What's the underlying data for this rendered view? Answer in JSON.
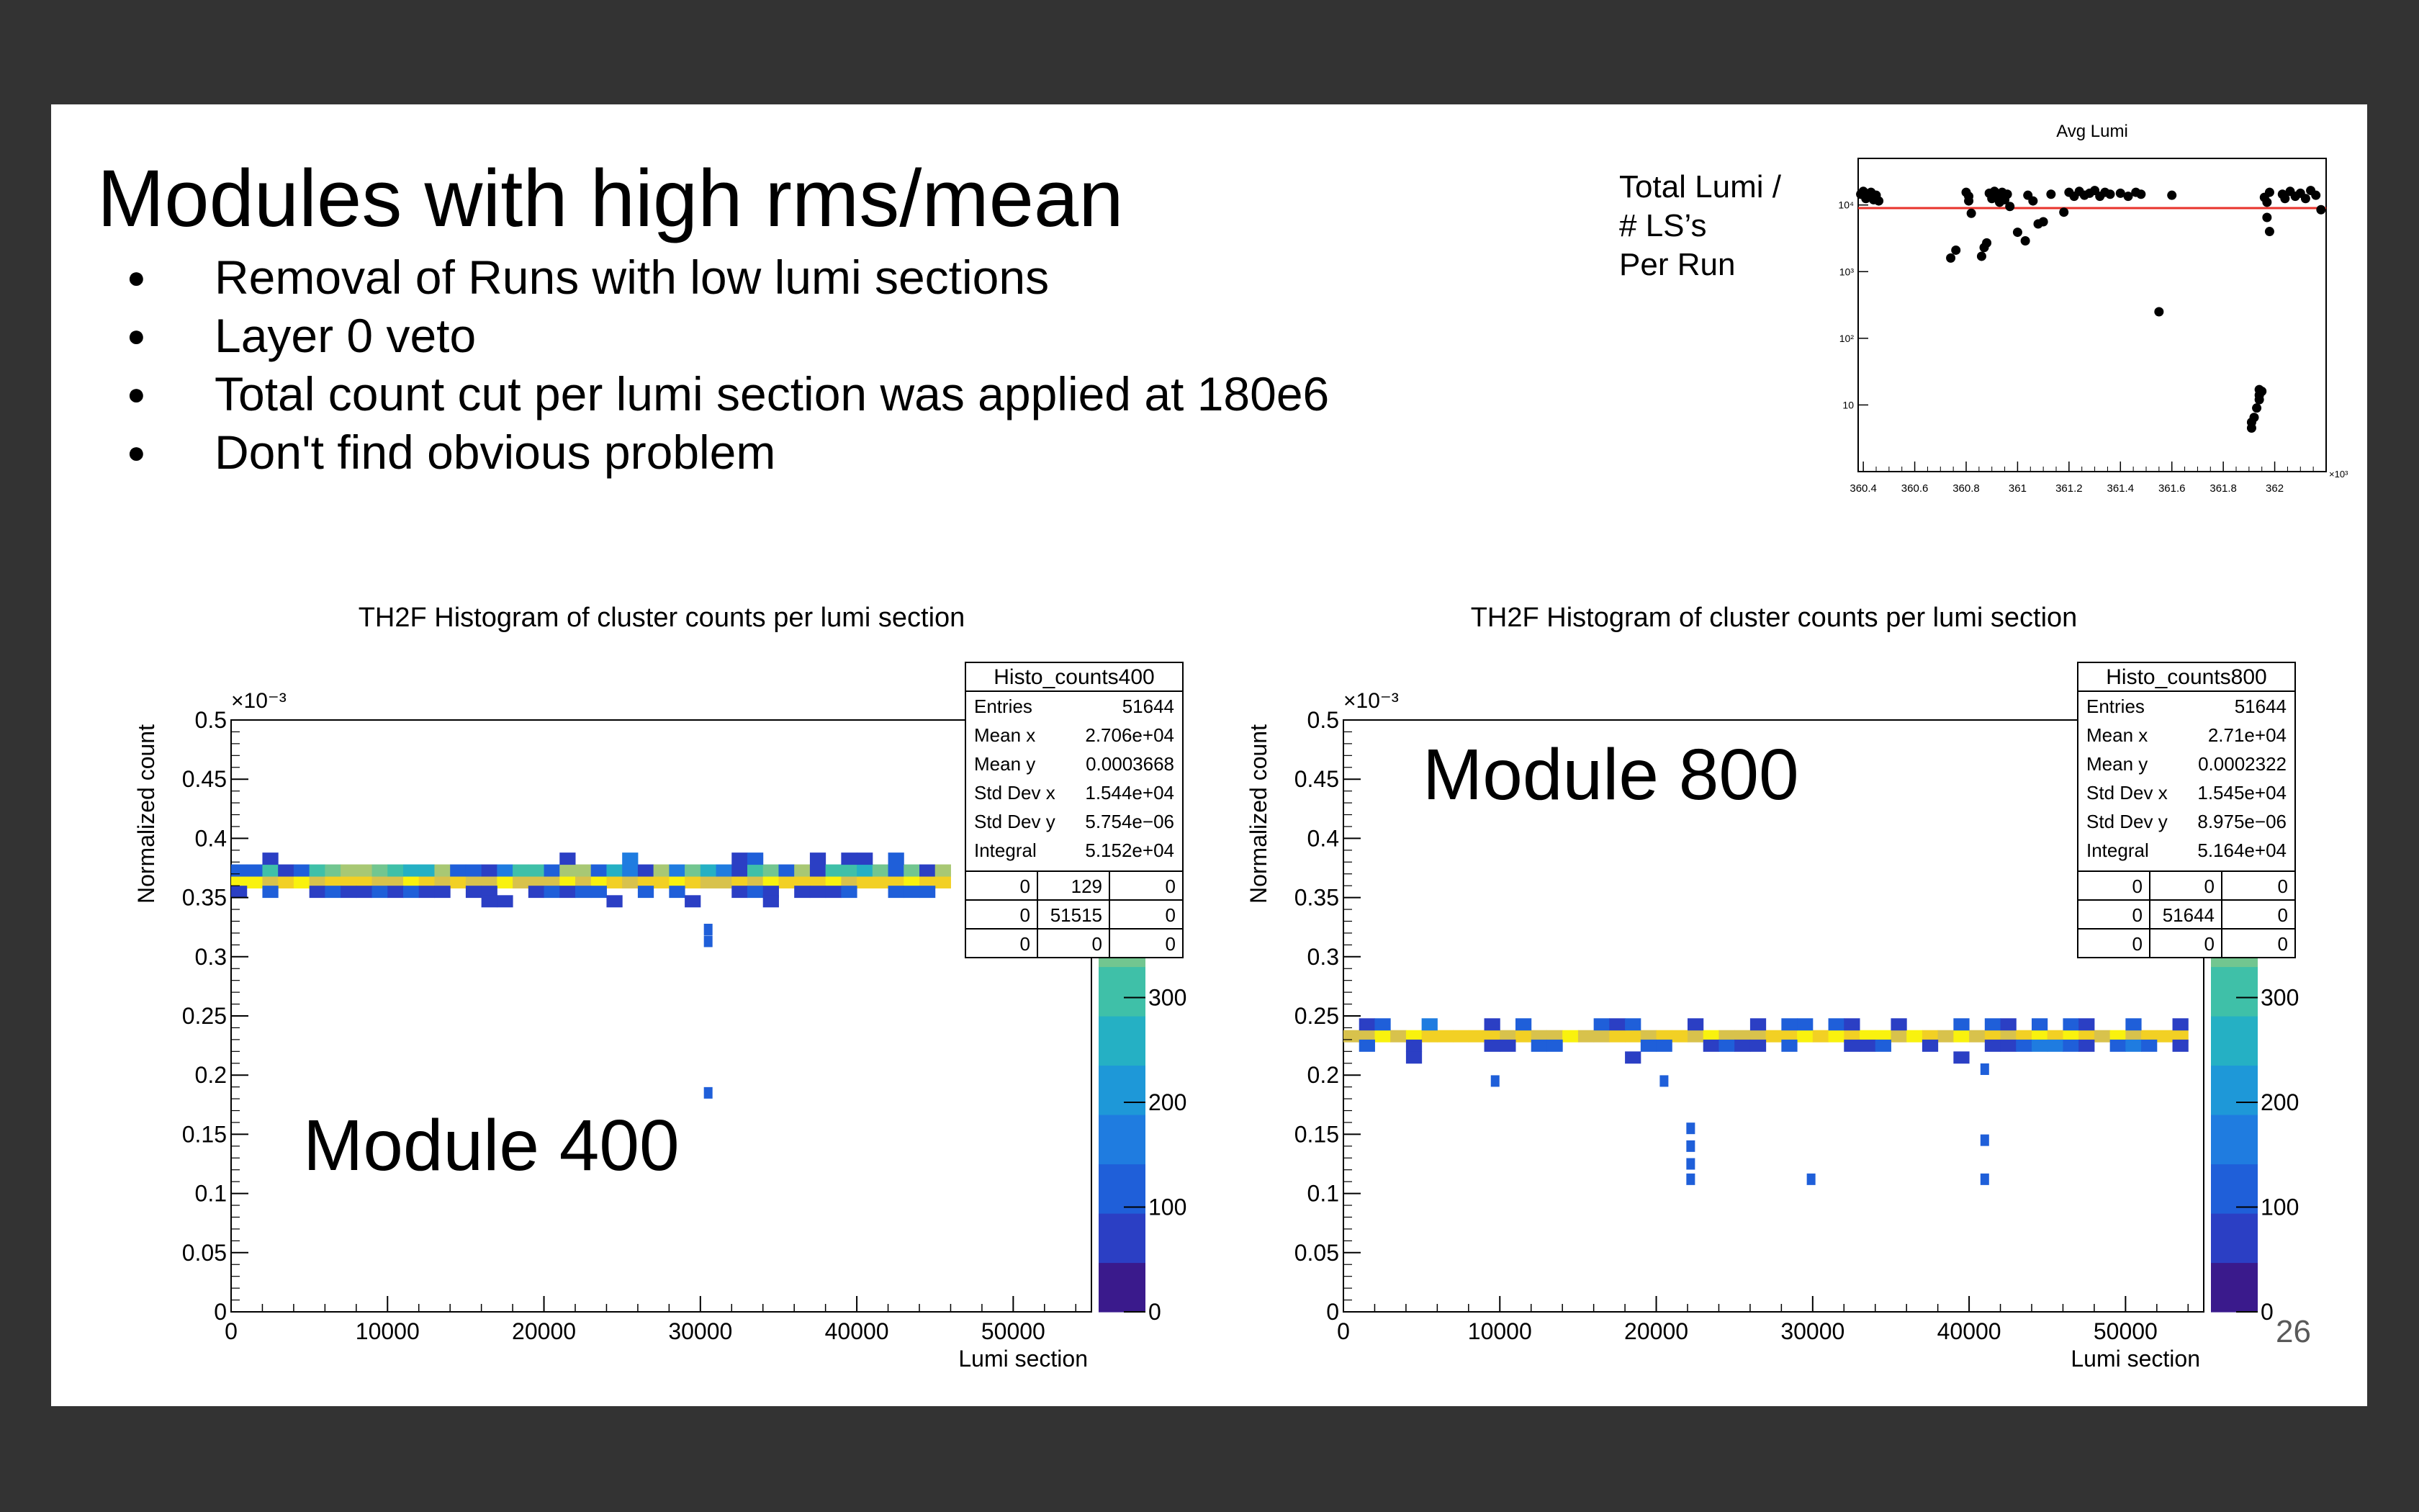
{
  "slide": {
    "title": "Modules with high rms/mean",
    "bullets": [
      "Removal of Runs with low lumi sections",
      "Layer 0 veto",
      "Total count cut per lumi section was applied at 180e6",
      "Don't find obvious problem"
    ],
    "lumi_label_lines": [
      "Total Lumi /",
      "#  LS’s",
      "Per Run"
    ],
    "page_number": "26"
  },
  "colors": {
    "background": "#333333",
    "slide": "#ffffff",
    "fit_line": "#e8332b",
    "palette": [
      "#3a1a8c",
      "#2b3fc4",
      "#1f5fd9",
      "#1f7ce0",
      "#1e98d8",
      "#25b0c4",
      "#3fc0a8",
      "#72c690",
      "#a8c874",
      "#d8c24c",
      "#f2d024",
      "#f9f20e"
    ]
  },
  "chart_data": [
    {
      "type": "scatter",
      "title": "Avg Lumi",
      "xlabel": "",
      "ylabel": "",
      "x_exponent_label": "×10³",
      "xlim": [
        360.38,
        362.2
      ],
      "ylim": [
        1,
        50000
      ],
      "y_scale": "log",
      "x_ticks": [
        360.4,
        360.6,
        360.8,
        361,
        361.2,
        361.4,
        361.6,
        361.8,
        362
      ],
      "x_tick_labels": [
        "360.4",
        "360.6",
        "360.8",
        "361",
        "361.2",
        "361.4",
        "361.6",
        "361.8",
        "362"
      ],
      "y_ticks": [
        10,
        100,
        1000,
        10000
      ],
      "y_tick_labels": [
        "10",
        "10²",
        "10³",
        "10⁴"
      ],
      "reference_line_y": 9000,
      "points": [
        [
          360.39,
          14500
        ],
        [
          360.4,
          16000
        ],
        [
          360.41,
          12500
        ],
        [
          360.42,
          13500
        ],
        [
          360.43,
          15500
        ],
        [
          360.44,
          12000
        ],
        [
          360.45,
          14000
        ],
        [
          360.46,
          11500
        ],
        [
          360.74,
          1600
        ],
        [
          360.76,
          2100
        ],
        [
          360.8,
          15500
        ],
        [
          360.81,
          13500
        ],
        [
          360.82,
          7500
        ],
        [
          360.81,
          11500
        ],
        [
          360.86,
          1700
        ],
        [
          360.87,
          2300
        ],
        [
          360.88,
          2700
        ],
        [
          360.89,
          15000
        ],
        [
          360.9,
          12500
        ],
        [
          360.91,
          16000
        ],
        [
          360.92,
          13500
        ],
        [
          360.93,
          11000
        ],
        [
          360.94,
          15500
        ],
        [
          360.95,
          12000
        ],
        [
          360.96,
          14500
        ],
        [
          360.97,
          9500
        ],
        [
          361.0,
          3900
        ],
        [
          361.03,
          2900
        ],
        [
          361.04,
          14000
        ],
        [
          361.06,
          11500
        ],
        [
          361.08,
          5200
        ],
        [
          361.1,
          5600
        ],
        [
          361.13,
          14500
        ],
        [
          361.18,
          7800
        ],
        [
          361.2,
          15500
        ],
        [
          361.22,
          13500
        ],
        [
          361.24,
          16000
        ],
        [
          361.26,
          14000
        ],
        [
          361.28,
          15000
        ],
        [
          361.3,
          16500
        ],
        [
          361.32,
          13500
        ],
        [
          361.34,
          15500
        ],
        [
          361.36,
          14500
        ],
        [
          361.4,
          15000
        ],
        [
          361.43,
          13500
        ],
        [
          361.46,
          15500
        ],
        [
          361.48,
          14500
        ],
        [
          361.55,
          250
        ],
        [
          361.6,
          14000
        ],
        [
          361.91,
          4.5
        ],
        [
          361.91,
          5.5
        ],
        [
          361.92,
          6.5
        ],
        [
          361.93,
          9
        ],
        [
          361.94,
          12
        ],
        [
          361.94,
          14
        ],
        [
          361.95,
          16
        ],
        [
          361.94,
          17
        ],
        [
          361.96,
          13000
        ],
        [
          361.97,
          11000
        ],
        [
          361.98,
          15500
        ],
        [
          361.97,
          6500
        ],
        [
          361.98,
          4000
        ],
        [
          362.03,
          14500
        ],
        [
          362.04,
          12500
        ],
        [
          362.06,
          16000
        ],
        [
          362.08,
          13500
        ],
        [
          362.1,
          15000
        ],
        [
          362.12,
          12500
        ],
        [
          362.14,
          16500
        ],
        [
          362.16,
          14000
        ],
        [
          362.18,
          8500
        ]
      ]
    },
    {
      "type": "heatmap",
      "title": "TH2F Histogram of cluster counts per lumi section",
      "xlabel": "Lumi section",
      "ylabel": "Normalized count",
      "y_exponent_label": "×10⁻³",
      "xlim": [
        0,
        55000
      ],
      "ylim": [
        0,
        0.5
      ],
      "x_ticks": [
        0,
        10000,
        20000,
        30000,
        40000,
        50000
      ],
      "y_ticks": [
        0,
        0.05,
        0.1,
        0.15,
        0.2,
        0.25,
        0.3,
        0.35,
        0.4,
        0.45,
        0.5
      ],
      "y_tick_labels": [
        "0",
        "0.05",
        "0.1",
        "0.15",
        "0.2",
        "0.25",
        "0.3",
        "0.35",
        "0.4",
        "0.45",
        "0.5"
      ],
      "z_ticks": [
        0,
        100,
        200,
        300
      ],
      "z_tick_labels": [
        "0",
        "100",
        "200",
        "300"
      ],
      "module_label": "Module 400",
      "band_rows": [
        {
          "y": 0.363,
          "kind": "core"
        },
        {
          "y": 0.373,
          "kind": "warm"
        },
        {
          "y": 0.355,
          "kind": "low"
        },
        {
          "y": 0.383,
          "kind": "sparse"
        },
        {
          "y": 0.347,
          "kind": "sparse2"
        }
      ],
      "band_xmax": 46000,
      "outliers": [
        [
          30500,
          0.313
        ],
        [
          30500,
          0.323
        ],
        [
          30500,
          0.185
        ]
      ],
      "stats": {
        "name": "Histo_counts400",
        "rows": [
          [
            "Entries",
            "51644"
          ],
          [
            "Mean x",
            "2.706e+04"
          ],
          [
            "Mean y",
            "0.0003668"
          ],
          [
            "Std Dev x",
            "1.544e+04"
          ],
          [
            "Std Dev y",
            "5.754e−06"
          ],
          [
            "Integral",
            "5.152e+04"
          ]
        ],
        "grid": [
          [
            "0",
            "129",
            "0"
          ],
          [
            "0",
            "51515",
            "0"
          ],
          [
            "0",
            "0",
            "0"
          ]
        ]
      }
    },
    {
      "type": "heatmap",
      "title": "TH2F Histogram of cluster counts per lumi section",
      "xlabel": "Lumi section",
      "ylabel": "Normalized count",
      "y_exponent_label": "×10⁻³",
      "xlim": [
        0,
        55000
      ],
      "ylim": [
        0,
        0.5
      ],
      "x_ticks": [
        0,
        10000,
        20000,
        30000,
        40000,
        50000
      ],
      "y_ticks": [
        0,
        0.05,
        0.1,
        0.15,
        0.2,
        0.25,
        0.3,
        0.35,
        0.4,
        0.45,
        0.5
      ],
      "y_tick_labels": [
        "0",
        "0.05",
        "0.1",
        "0.15",
        "0.2",
        "0.25",
        "0.3",
        "0.35",
        "0.4",
        "0.45",
        "0.5"
      ],
      "z_ticks": [
        0,
        100,
        200,
        300
      ],
      "z_tick_labels": [
        "0",
        "100",
        "200",
        "300"
      ],
      "module_label": "Module 800",
      "band_rows": [
        {
          "y": 0.233,
          "kind": "core"
        },
        {
          "y": 0.225,
          "kind": "low"
        },
        {
          "y": 0.243,
          "kind": "sparse"
        },
        {
          "y": 0.215,
          "kind": "sparse2"
        }
      ],
      "band_xmax": 54000,
      "outliers": [
        [
          9700,
          0.195
        ],
        [
          20500,
          0.195
        ],
        [
          22200,
          0.155
        ],
        [
          22200,
          0.14
        ],
        [
          22200,
          0.125
        ],
        [
          22200,
          0.112
        ],
        [
          29900,
          0.112
        ],
        [
          41000,
          0.205
        ],
        [
          41000,
          0.145
        ],
        [
          41000,
          0.112
        ]
      ],
      "stats": {
        "name": "Histo_counts800",
        "rows": [
          [
            "Entries",
            "51644"
          ],
          [
            "Mean x",
            "2.71e+04"
          ],
          [
            "Mean y",
            "0.0002322"
          ],
          [
            "Std Dev x",
            "1.545e+04"
          ],
          [
            "Std Dev y",
            "8.975e−06"
          ],
          [
            "Integral",
            "5.164e+04"
          ]
        ],
        "grid": [
          [
            "0",
            "0",
            "0"
          ],
          [
            "0",
            "51644",
            "0"
          ],
          [
            "0",
            "0",
            "0"
          ]
        ]
      }
    }
  ]
}
